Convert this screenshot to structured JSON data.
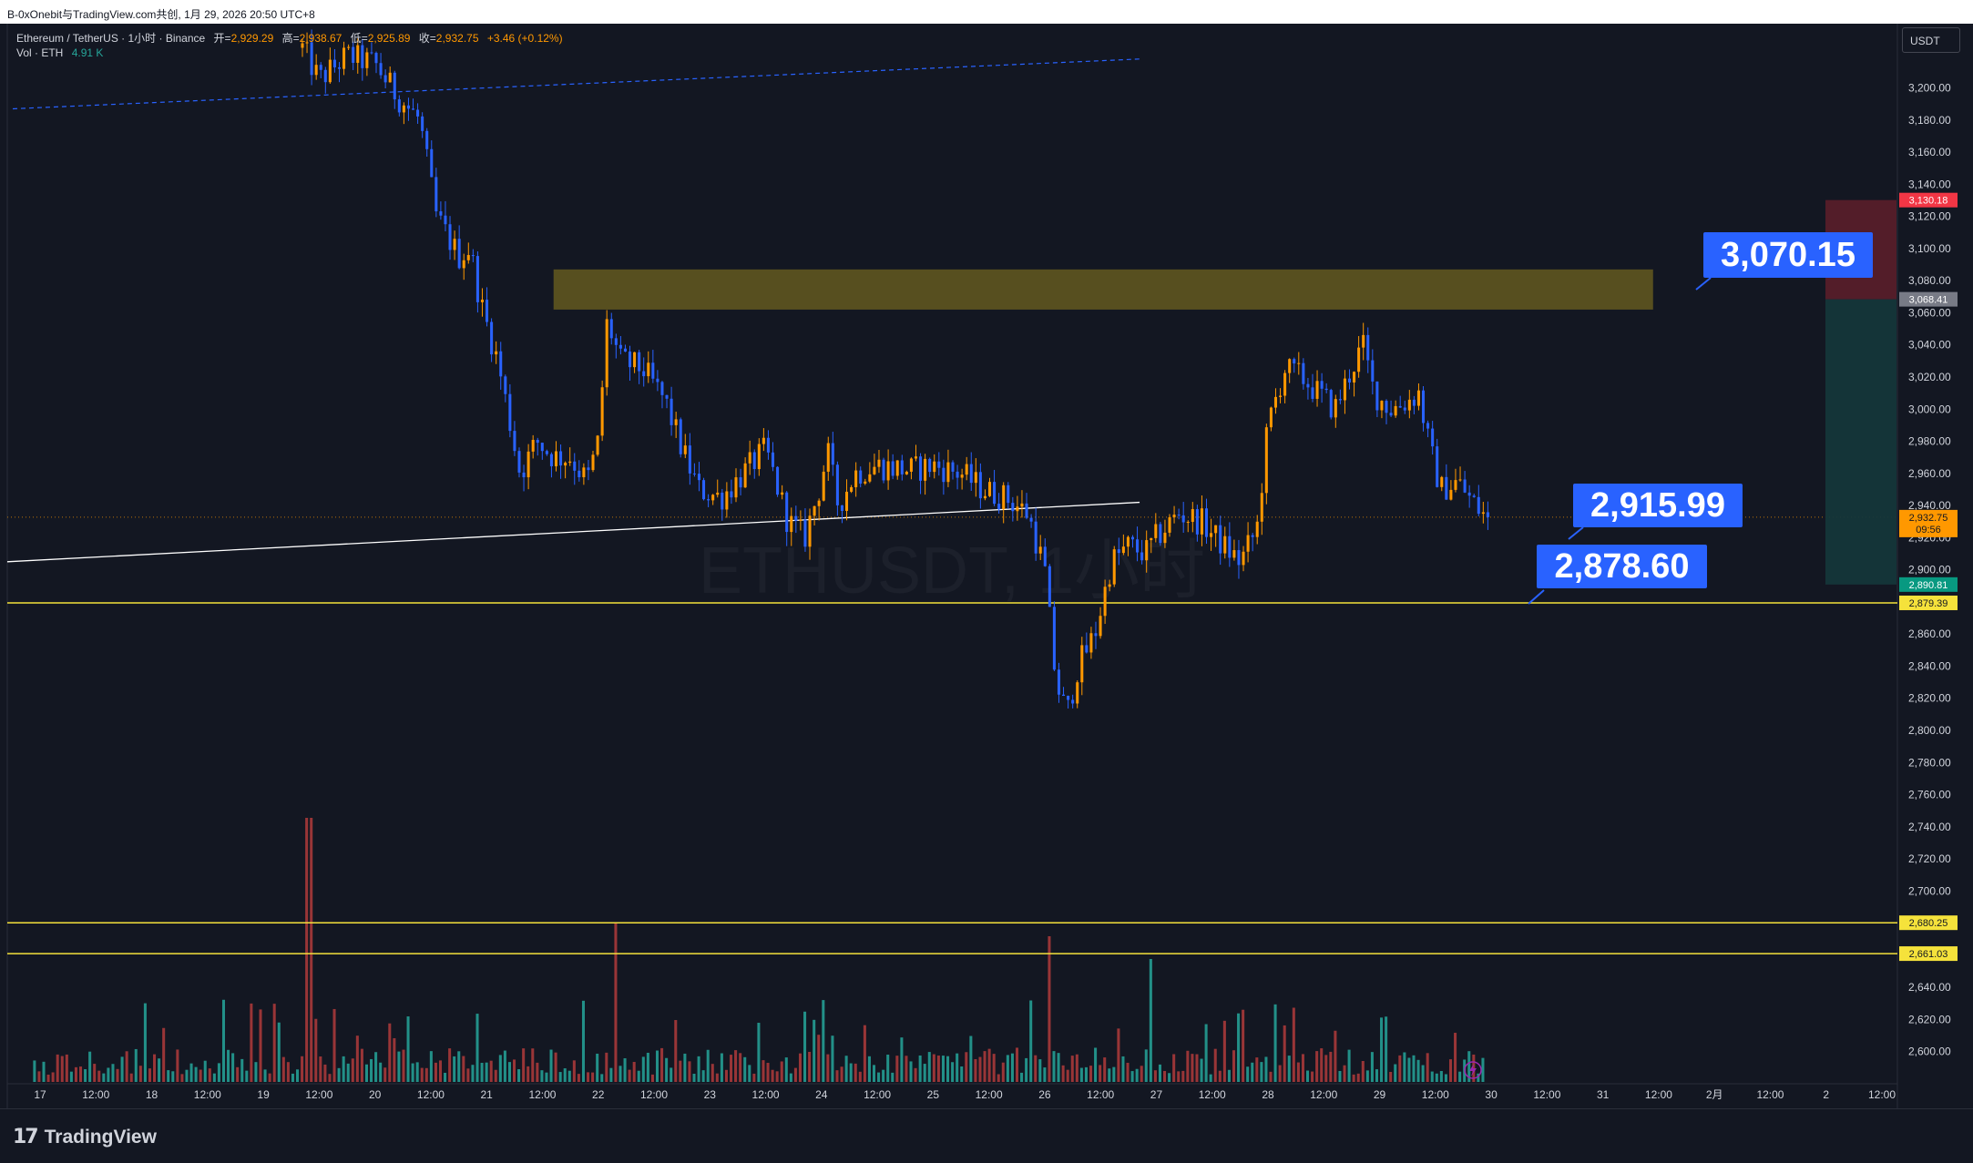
{
  "window_title": "B-0xOnebit与TradingView.com共创, 1月 29, 2026 20:50 UTC+8",
  "legend": {
    "symbol": "Ethereum / TetherUS · 1小时 · Binance",
    "open_label": "开=",
    "open": "2,929.29",
    "high_label": "高=",
    "high": "2,938.67",
    "low_label": "低=",
    "low": "2,925.89",
    "close_label": "收=",
    "close": "2,932.75",
    "change": "+3.46 (+0.12%)",
    "vol_label": "Vol · ETH",
    "vol": "4.91 K"
  },
  "watermark": "ETHUSDT, 1小时",
  "currency_button": "USDT",
  "brand": "TradingView",
  "annotations": {
    "target_price": "3,070.15",
    "current_price": "2,915.99",
    "support_price": "2,878.60"
  },
  "price_labels": {
    "stop_loss": "3,130.18",
    "entry": "3,068.41",
    "last_price": "2,932.75",
    "countdown": "09:56",
    "take_profit": "2,890.81",
    "support_line": "2,879.39",
    "line_2680": "2,680.25",
    "line_2661": "2,661.03"
  },
  "colors": {
    "background": "#131722",
    "up": "#ff9800",
    "down": "#2962ff",
    "volume_up": "#26a69a",
    "volume_down": "#b23b3b",
    "zone": "#5b5220",
    "horizontal_line": "#f5e23b",
    "annotation": "#2962ff"
  },
  "chart_data": {
    "type": "candlestick",
    "symbol": "ETHUSDT",
    "interval": "1小时",
    "y_axis_ticks": [
      3200,
      3180,
      3160,
      3140,
      3120,
      3100,
      3080,
      3060,
      3040,
      3020,
      3000,
      2980,
      2960,
      2940,
      2920,
      2900,
      2880,
      2860,
      2840,
      2820,
      2800,
      2780,
      2760,
      2740,
      2720,
      2700,
      2680,
      2660,
      2640,
      2620,
      2600
    ],
    "y_tick_labels": [
      "3,200.00",
      "3,180.00",
      "3,160.00",
      "3,140.00",
      "3,120.00",
      "3,100.00",
      "3,080.00",
      "3,060.00",
      "3,040.00",
      "3,020.00",
      "3,000.00",
      "2,980.00",
      "2,960.00",
      "2,940.00",
      "2,920.00",
      "2,900.00",
      "2,880.00",
      "2,860.00",
      "2,840.00",
      "2,820.00",
      "2,800.00",
      "2,780.00",
      "2,760.00",
      "2,740.00",
      "2,720.00",
      "2,700.00",
      "2,680.00",
      "2,660.00",
      "2,640.00",
      "2,620.00",
      "2,600.00"
    ],
    "ylim": [
      2580,
      3240
    ],
    "x_ticks": [
      {
        "day": 17.0,
        "label": "17"
      },
      {
        "day": 17.5,
        "label": "12:00"
      },
      {
        "day": 18.0,
        "label": "18"
      },
      {
        "day": 18.5,
        "label": "12:00"
      },
      {
        "day": 19.0,
        "label": "19"
      },
      {
        "day": 19.5,
        "label": "12:00"
      },
      {
        "day": 20.0,
        "label": "20"
      },
      {
        "day": 20.5,
        "label": "12:00"
      },
      {
        "day": 21.0,
        "label": "21"
      },
      {
        "day": 21.5,
        "label": "12:00"
      },
      {
        "day": 22.0,
        "label": "22"
      },
      {
        "day": 22.5,
        "label": "12:00"
      },
      {
        "day": 23.0,
        "label": "23"
      },
      {
        "day": 23.5,
        "label": "12:00"
      },
      {
        "day": 24.0,
        "label": "24"
      },
      {
        "day": 24.5,
        "label": "12:00"
      },
      {
        "day": 25.0,
        "label": "25"
      },
      {
        "day": 25.5,
        "label": "12:00"
      },
      {
        "day": 26.0,
        "label": "26"
      },
      {
        "day": 26.5,
        "label": "12:00"
      },
      {
        "day": 27.0,
        "label": "27"
      },
      {
        "day": 27.5,
        "label": "12:00"
      },
      {
        "day": 28.0,
        "label": "28"
      },
      {
        "day": 28.5,
        "label": "12:00"
      },
      {
        "day": 29.0,
        "label": "29"
      },
      {
        "day": 29.5,
        "label": "12:00"
      },
      {
        "day": 30.0,
        "label": "30"
      },
      {
        "day": 30.5,
        "label": "12:00"
      },
      {
        "day": 31.0,
        "label": "31"
      },
      {
        "day": 31.5,
        "label": "12:00"
      },
      {
        "day": 32.0,
        "label": "2月"
      },
      {
        "day": 32.5,
        "label": "12:00"
      },
      {
        "day": 33.0,
        "label": "2"
      },
      {
        "day": 33.5,
        "label": "12:00"
      }
    ],
    "price_path": [
      [
        19.35,
        3225
      ],
      [
        19.5,
        3205
      ],
      [
        19.75,
        3220
      ],
      [
        20.0,
        3215
      ],
      [
        20.2,
        3195
      ],
      [
        20.4,
        3180
      ],
      [
        20.55,
        3120
      ],
      [
        20.75,
        3095
      ],
      [
        20.85,
        3100
      ],
      [
        20.95,
        3065
      ],
      [
        21.1,
        3030
      ],
      [
        21.3,
        2960
      ],
      [
        21.45,
        2980
      ],
      [
        21.6,
        2970
      ],
      [
        21.75,
        2970
      ],
      [
        21.9,
        2955
      ],
      [
        22.0,
        2980
      ],
      [
        22.08,
        3055
      ],
      [
        22.2,
        3030
      ],
      [
        22.4,
        3025
      ],
      [
        22.6,
        3005
      ],
      [
        22.75,
        2975
      ],
      [
        22.9,
        2950
      ],
      [
        23.1,
        2945
      ],
      [
        23.3,
        2960
      ],
      [
        23.5,
        2975
      ],
      [
        23.7,
        2930
      ],
      [
        23.85,
        2920
      ],
      [
        24.0,
        2955
      ],
      [
        24.05,
        2975
      ],
      [
        24.15,
        2940
      ],
      [
        24.3,
        2960
      ],
      [
        24.5,
        2965
      ],
      [
        24.8,
        2962
      ],
      [
        25.0,
        2965
      ],
      [
        25.25,
        2960
      ],
      [
        25.45,
        2950
      ],
      [
        25.65,
        2945
      ],
      [
        25.85,
        2935
      ],
      [
        26.0,
        2900
      ],
      [
        26.1,
        2830
      ],
      [
        26.2,
        2810
      ],
      [
        26.3,
        2840
      ],
      [
        26.45,
        2860
      ],
      [
        26.6,
        2905
      ],
      [
        26.75,
        2915
      ],
      [
        26.9,
        2910
      ],
      [
        27.0,
        2920
      ],
      [
        27.2,
        2935
      ],
      [
        27.4,
        2930
      ],
      [
        27.6,
        2915
      ],
      [
        27.75,
        2905
      ],
      [
        27.9,
        2925
      ],
      [
        28.0,
        2990
      ],
      [
        28.15,
        3025
      ],
      [
        28.3,
        3020
      ],
      [
        28.45,
        3010
      ],
      [
        28.6,
        3000
      ],
      [
        28.75,
        3025
      ],
      [
        28.85,
        3040
      ],
      [
        28.95,
        3010
      ],
      [
        29.1,
        3000
      ],
      [
        29.25,
        3005
      ],
      [
        29.35,
        3010
      ],
      [
        29.45,
        2975
      ],
      [
        29.55,
        2950
      ],
      [
        29.7,
        2955
      ],
      [
        29.8,
        2945
      ],
      [
        29.92,
        2935
      ],
      [
        29.97,
        2932.75
      ]
    ],
    "candle_count": 258,
    "horizontal_levels": [
      2879.39,
      2680.25,
      2661.03
    ],
    "resistance_zone": {
      "from_day": 21.6,
      "to_day": 31.45,
      "low": 3062,
      "high": 3087
    },
    "trendline_white": {
      "from": [
        16.0,
        2905
      ],
      "to": [
        26.85,
        2942
      ]
    },
    "trendline_dashed": {
      "from": [
        16.0,
        3187
      ],
      "to": [
        26.85,
        3218
      ]
    },
    "position": {
      "from_day": 32.8,
      "to_day": 33.65,
      "entry": 3068.41,
      "stop": 3130.18,
      "target": 2890.81
    },
    "last_price": 2932.75
  }
}
